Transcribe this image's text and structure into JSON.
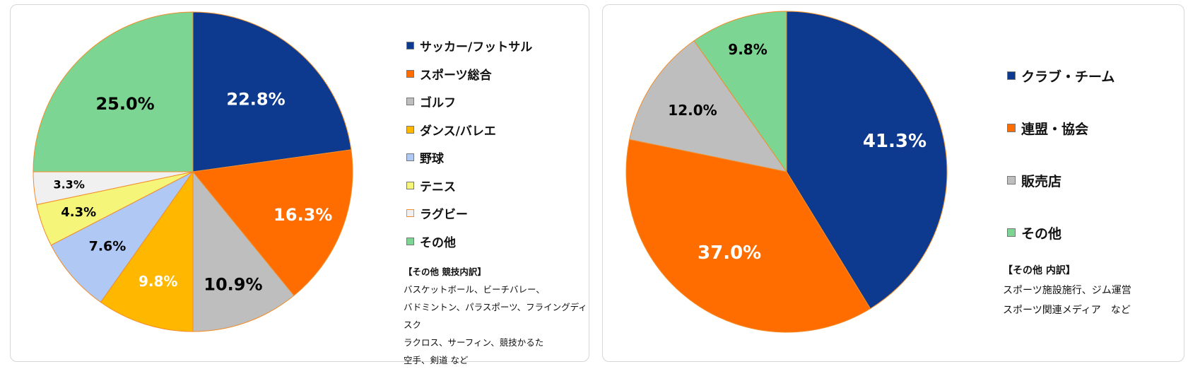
{
  "chart_data": [
    {
      "type": "pie",
      "title": "",
      "colors": [
        "#0D3A8F",
        "#FF6D00",
        "#BEBEBE",
        "#FFB700",
        "#AFC8F4",
        "#F5F57A",
        "#F0F0F0",
        "#7DD593"
      ],
      "label_colors": [
        "#ffffff",
        "#ffffff",
        "#000000",
        "#ffffff",
        "#000000",
        "#000000",
        "#000000",
        "#000000"
      ],
      "categories": [
        "サッカー/フットサル",
        "スポーツ総合",
        "ゴルフ",
        "ダンス/バレエ",
        "野球",
        "テニス",
        "ラグビー",
        "その他"
      ],
      "values": [
        22.8,
        16.3,
        10.9,
        9.8,
        7.6,
        4.3,
        3.3,
        25.0
      ],
      "data_labels": [
        "22.8%",
        "16.3%",
        "10.9%",
        "9.8%",
        "7.6%",
        "4.3%",
        "3.3%",
        "25.0%"
      ],
      "note": {
        "title": "【その他 競技内訳】",
        "lines": [
          "バスケットボール、ビーチバレー、",
          "バドミントン、パラスポーツ、フライングディスク",
          "ラクロス、サーフィン、競技かるた",
          "空手、剣道 など"
        ]
      }
    },
    {
      "type": "pie",
      "title": "",
      "colors": [
        "#0D3A8F",
        "#FF6D00",
        "#BEBEBE",
        "#7DD593"
      ],
      "label_colors": [
        "#ffffff",
        "#ffffff",
        "#000000",
        "#000000"
      ],
      "categories": [
        "クラブ・チーム",
        "連盟・協会",
        "販売店",
        "その他"
      ],
      "values": [
        41.3,
        37.0,
        12.0,
        9.8
      ],
      "data_labels": [
        "41.3%",
        "37.0%",
        "12.0%",
        "9.8%"
      ],
      "note": {
        "title": "【その他 内訳】",
        "lines": [
          "スポーツ施設施行、ジム運営",
          "スポーツ関連メディア　など"
        ]
      }
    }
  ]
}
